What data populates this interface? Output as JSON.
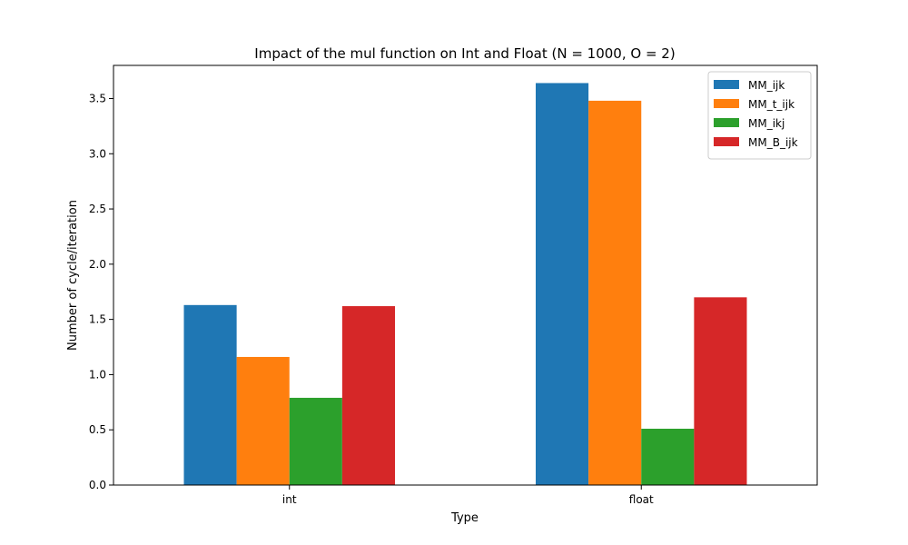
{
  "chart_data": {
    "type": "bar",
    "title": "Impact of the mul function on Int and Float (N = 1000, O = 2)",
    "xlabel": "Type",
    "ylabel": "Number of cycle/iteration",
    "categories": [
      "int",
      "float"
    ],
    "series": [
      {
        "name": "MM_ijk",
        "color": "#1f77b4",
        "values": [
          1.63,
          3.64
        ]
      },
      {
        "name": "MM_t_ijk",
        "color": "#ff7f0e",
        "values": [
          1.16,
          3.48
        ]
      },
      {
        "name": "MM_ikj",
        "color": "#2ca02c",
        "values": [
          0.79,
          0.51
        ]
      },
      {
        "name": "MM_B_ijk",
        "color": "#d62728",
        "values": [
          1.62,
          1.7
        ]
      }
    ],
    "ylim": [
      0,
      3.8
    ],
    "yticks": [
      "0.0",
      "0.5",
      "1.0",
      "1.5",
      "2.0",
      "2.5",
      "3.0",
      "3.5"
    ],
    "legend_position": "top-right",
    "grid": false
  }
}
